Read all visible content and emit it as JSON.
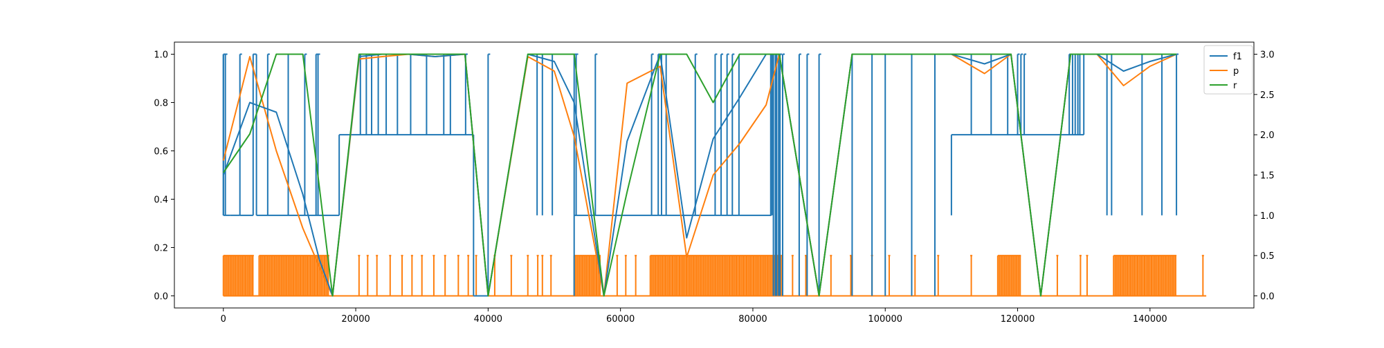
{
  "chart_data": {
    "type": "line",
    "title": "",
    "xlabel": "",
    "ylabel": "",
    "xlim": [
      -7400,
      155700
    ],
    "ylim": [
      -0.05,
      1.05
    ],
    "y2lim": [
      -0.15,
      3.15
    ],
    "x_ticks": [
      0,
      20000,
      40000,
      60000,
      80000,
      100000,
      120000,
      140000
    ],
    "x_tick_labels": [
      "0",
      "20000",
      "40000",
      "60000",
      "80000",
      "100000",
      "120000",
      "140000"
    ],
    "y_ticks": [
      0.0,
      0.2,
      0.4,
      0.6,
      0.8,
      1.0
    ],
    "y_tick_labels": [
      "0.0",
      "0.2",
      "0.4",
      "0.6",
      "0.8",
      "1.0"
    ],
    "y2_ticks": [
      0.0,
      0.5,
      1.0,
      1.5,
      2.0,
      2.5,
      3.0
    ],
    "y2_tick_labels": [
      "0.0",
      "0.5",
      "1.0",
      "1.5",
      "2.0",
      "2.5",
      "3.0"
    ],
    "grid": false,
    "legend_position": "top-right",
    "legend": [
      "f1",
      "p",
      "r"
    ],
    "colors": {
      "f1": "#1f77b4",
      "p": "#ff7f0e",
      "r": "#2ca02c"
    },
    "series": [
      {
        "name": "f1",
        "axis": "left",
        "color": "#1f77b4",
        "x": [
          0,
          4000,
          8000,
          12000,
          14500,
          16500,
          20500,
          24000,
          28000,
          32000,
          36500,
          40000,
          46000,
          50000,
          53000,
          57500,
          61000,
          66000,
          70000,
          74000,
          78000,
          82000,
          84000,
          90000,
          95000,
          100000,
          105000,
          110000,
          115000,
          119000,
          123500,
          128000,
          132000,
          136000,
          140000,
          144000
        ],
        "values": [
          0.5,
          0.8,
          0.76,
          0.42,
          0.15,
          0.0,
          0.99,
          1.0,
          1.0,
          0.99,
          1.0,
          0.0,
          1.0,
          0.97,
          0.8,
          0.0,
          0.64,
          1.0,
          0.24,
          0.65,
          0.82,
          1.0,
          1.0,
          0.0,
          1.0,
          1.0,
          1.0,
          1.0,
          0.96,
          1.0,
          0.0,
          1.0,
          1.0,
          0.93,
          0.97,
          1.0
        ]
      },
      {
        "name": "p",
        "axis": "left",
        "color": "#ff7f0e",
        "x": [
          0,
          4000,
          8000,
          12000,
          14500,
          16500,
          20500,
          24000,
          28000,
          32000,
          36500,
          40000,
          46000,
          50000,
          53000,
          57500,
          61000,
          66000,
          70000,
          74000,
          78000,
          82000,
          84000,
          90000,
          95000,
          100000,
          105000,
          110000,
          115000,
          119000,
          123500,
          128000,
          132000,
          136000,
          140000,
          144000
        ],
        "values": [
          0.56,
          0.99,
          0.6,
          0.28,
          0.12,
          0.0,
          0.98,
          0.99,
          1.0,
          0.99,
          1.0,
          0.0,
          0.99,
          0.93,
          0.66,
          0.0,
          0.88,
          0.95,
          0.16,
          0.5,
          0.63,
          0.79,
          1.0,
          0.0,
          1.0,
          1.0,
          1.0,
          1.0,
          0.92,
          1.0,
          0.0,
          1.0,
          1.0,
          0.87,
          0.95,
          1.0
        ]
      },
      {
        "name": "r",
        "axis": "left",
        "color": "#2ca02c",
        "x": [
          0,
          4000,
          8000,
          12000,
          14500,
          16500,
          20500,
          24000,
          28000,
          32000,
          36500,
          40000,
          46000,
          50000,
          53000,
          57500,
          61000,
          66000,
          70000,
          74000,
          78000,
          82000,
          84000,
          90000,
          95000,
          100000,
          105000,
          110000,
          115000,
          119000,
          123500,
          128000,
          132000,
          136000,
          140000,
          144000
        ],
        "values": [
          0.51,
          0.67,
          1.0,
          1.0,
          0.45,
          0.0,
          1.0,
          1.0,
          1.0,
          1.0,
          1.0,
          0.0,
          1.0,
          1.0,
          1.0,
          0.0,
          0.43,
          1.0,
          1.0,
          0.8,
          1.0,
          1.0,
          1.0,
          0.0,
          1.0,
          1.0,
          1.0,
          1.0,
          1.0,
          1.0,
          0.0,
          1.0,
          1.0,
          1.0,
          1.0,
          1.0
        ]
      },
      {
        "name": "",
        "axis": "right",
        "color": "#1f77b4",
        "segments": [
          {
            "x": [
              0,
              1000
            ],
            "value": 1.0
          },
          {
            "x": [
              1000,
              2500
            ],
            "value": 1.0
          },
          {
            "x": [
              2500,
              4500
            ],
            "value": 1.0
          },
          {
            "x": [
              4500,
              5000
            ],
            "value": 3.0
          },
          {
            "x": [
              5000,
              17500
            ],
            "value": 1.0
          },
          {
            "x": [
              17500,
              37800
            ],
            "value": 2.0
          },
          {
            "x": [
              37800,
              40000
            ],
            "value": 0.0
          },
          {
            "x": [
              53000,
              82800
            ],
            "value": 1.0
          },
          {
            "x": [
              110000,
              130000
            ],
            "value": 2.0
          }
        ],
        "spikes": [
          0,
          300,
          2500,
          4500,
          6700,
          9800,
          12300,
          14000,
          14300,
          20700,
          21600,
          22400,
          23400,
          24600,
          26300,
          28300,
          30700,
          33300,
          34300,
          36600,
          40000,
          47400,
          48200,
          49700,
          53000,
          53300,
          56200,
          64700,
          65700,
          66200,
          66900,
          71300,
          74300,
          75200,
          76100,
          76900,
          77900,
          82700,
          82900,
          83100,
          83400,
          83600,
          83900,
          84100,
          84500,
          87000,
          88200,
          90000,
          95000,
          98000,
          100000,
          104000,
          107500,
          113000,
          116000,
          118500,
          120000,
          120500,
          121000,
          127800,
          128300,
          128700,
          129100,
          129400,
          130000,
          133500,
          134200,
          138800,
          141800,
          144000
        ]
      },
      {
        "name": "",
        "axis": "right",
        "color": "#ff7f0e",
        "baseline": 0.0,
        "spike_value": 0.5,
        "dense_ranges": [
          [
            0,
            4600
          ],
          [
            5400,
            16000
          ],
          [
            53000,
            57000
          ],
          [
            64500,
            84500
          ],
          [
            117000,
            120500
          ],
          [
            134500,
            144000
          ]
        ],
        "spikes": [
          20500,
          21800,
          23200,
          25200,
          27000,
          28500,
          30000,
          31800,
          33500,
          35500,
          37000,
          38200,
          41000,
          43500,
          46000,
          47500,
          48200,
          49500,
          59500,
          60800,
          62300,
          86000,
          88000,
          91800,
          94800,
          98000,
          100600,
          104500,
          108000,
          113000,
          126000,
          129500,
          130500,
          148000
        ]
      }
    ]
  }
}
